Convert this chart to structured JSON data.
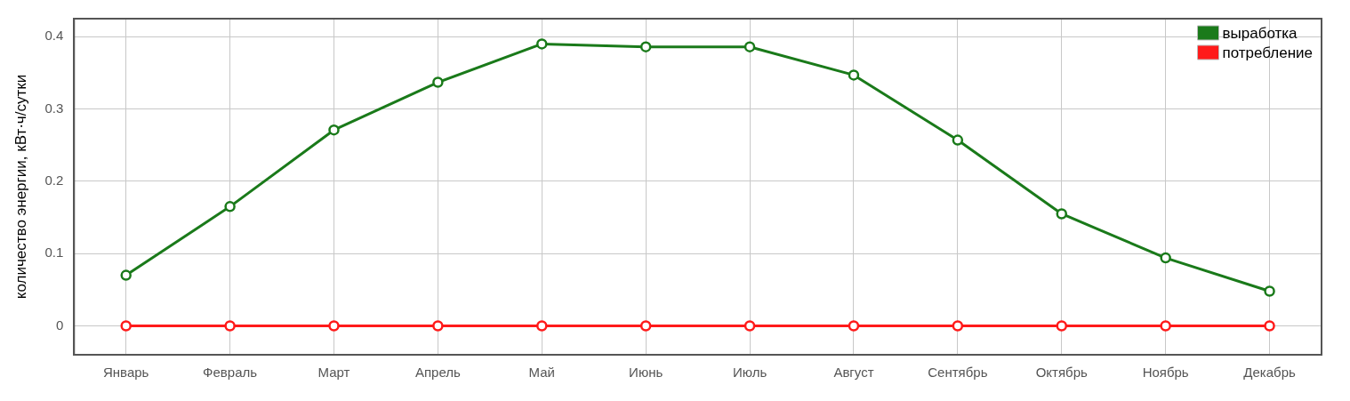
{
  "chart_data": {
    "type": "line",
    "ylabel": "количество энергии, кВт·ч/сутки",
    "categories": [
      "Январь",
      "Февраль",
      "Март",
      "Апрель",
      "Май",
      "Июнь",
      "Июль",
      "Август",
      "Сентябрь",
      "Октябрь",
      "Ноябрь",
      "Декабрь"
    ],
    "series": [
      {
        "name": "выработка",
        "color": "#1a7a1a",
        "values": [
          0.07,
          0.165,
          0.271,
          0.337,
          0.39,
          0.386,
          0.386,
          0.347,
          0.257,
          0.155,
          0.094,
          0.048
        ]
      },
      {
        "name": "потребление",
        "color": "#ff1a1a",
        "values": [
          0,
          0,
          0,
          0,
          0,
          0,
          0,
          0,
          0,
          0,
          0,
          0
        ]
      }
    ],
    "ylim": [
      -0.04,
      0.425
    ],
    "yticks": [
      0,
      0.1,
      0.2,
      0.3,
      0.4
    ],
    "grid": true,
    "legend": "top right",
    "marker": "circle",
    "line_style": "solid"
  }
}
